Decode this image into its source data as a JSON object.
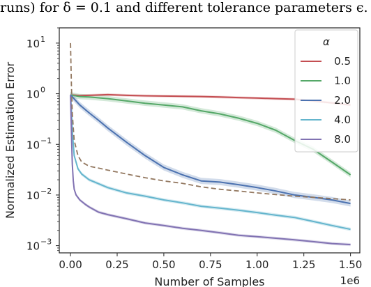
{
  "caption": "runs) for δ = 0.1 and different tolerance parameters ϵ.",
  "chart_data": {
    "type": "line",
    "title": "",
    "xlabel": "Number of Samples",
    "ylabel": "Normalized Estimation Error",
    "x_offset_label": "1e6",
    "xlim": [
      -0.06,
      1.55
    ],
    "ylim": [
      0.00072,
      20
    ],
    "yscale": "log",
    "grid": false,
    "x_ticks": [
      0.0,
      0.25,
      0.5,
      0.75,
      1.0,
      1.25,
      1.5
    ],
    "x_tick_labels": [
      "0.00",
      "0.25",
      "0.50",
      "0.75",
      "1.00",
      "1.25",
      "1.50"
    ],
    "y_ticks": [
      0.001,
      0.01,
      0.1,
      1,
      10
    ],
    "y_tick_labels": [
      "10",
      "10",
      "10",
      "10",
      "10"
    ],
    "y_tick_exponents": [
      "−3",
      "−2",
      "−1",
      "0",
      "1"
    ],
    "legend": {
      "title": "α",
      "position": "top-right"
    },
    "series": [
      {
        "name": "0.5",
        "color": "#c44e52",
        "x": [
          0.0,
          0.05,
          0.1,
          0.2,
          0.3,
          0.4,
          0.5,
          0.6,
          0.7,
          0.8,
          0.9,
          1.0,
          1.1,
          1.2,
          1.3,
          1.4,
          1.5
        ],
        "y": [
          0.95,
          0.92,
          0.93,
          0.96,
          0.93,
          0.91,
          0.9,
          0.89,
          0.88,
          0.86,
          0.84,
          0.82,
          0.8,
          0.78,
          0.72,
          0.66,
          0.6
        ],
        "band": 0.06
      },
      {
        "name": "1.0",
        "color": "#55a868",
        "x": [
          0.0,
          0.05,
          0.1,
          0.2,
          0.3,
          0.4,
          0.5,
          0.6,
          0.7,
          0.8,
          0.9,
          1.0,
          1.1,
          1.2,
          1.3,
          1.4,
          1.5
        ],
        "y": [
          0.95,
          0.88,
          0.86,
          0.8,
          0.72,
          0.65,
          0.6,
          0.55,
          0.46,
          0.4,
          0.33,
          0.26,
          0.19,
          0.12,
          0.08,
          0.045,
          0.025
        ],
        "band": 0.13
      },
      {
        "name": "2.0",
        "color": "#4c72b0",
        "x": [
          0.0,
          0.05,
          0.1,
          0.15,
          0.2,
          0.3,
          0.4,
          0.5,
          0.6,
          0.7,
          0.8,
          0.9,
          1.0,
          1.1,
          1.2,
          1.3,
          1.4,
          1.5
        ],
        "y": [
          0.95,
          0.6,
          0.42,
          0.3,
          0.21,
          0.11,
          0.06,
          0.035,
          0.025,
          0.019,
          0.018,
          0.016,
          0.014,
          0.012,
          0.01,
          0.009,
          0.008,
          0.0068
        ],
        "band": 0.15
      },
      {
        "name": "4.0",
        "color": "#64b5cd",
        "x": [
          0.0,
          0.005,
          0.01,
          0.02,
          0.04,
          0.06,
          0.1,
          0.2,
          0.3,
          0.4,
          0.5,
          0.6,
          0.7,
          0.8,
          0.9,
          1.0,
          1.1,
          1.2,
          1.3,
          1.4,
          1.5
        ],
        "y": [
          0.95,
          0.5,
          0.18,
          0.06,
          0.033,
          0.026,
          0.02,
          0.014,
          0.011,
          0.0095,
          0.008,
          0.007,
          0.006,
          0.0055,
          0.005,
          0.0045,
          0.004,
          0.0036,
          0.003,
          0.0025,
          0.0021
        ],
        "band": 0.08
      },
      {
        "name": "8.0",
        "color": "#8172b2",
        "x": [
          0.0,
          0.003,
          0.006,
          0.01,
          0.015,
          0.02,
          0.03,
          0.05,
          0.08,
          0.1,
          0.15,
          0.2,
          0.3,
          0.4,
          0.5,
          0.6,
          0.7,
          0.8,
          0.9,
          1.0,
          1.1,
          1.2,
          1.3,
          1.4,
          1.5
        ],
        "y": [
          0.95,
          0.35,
          0.12,
          0.04,
          0.019,
          0.013,
          0.01,
          0.008,
          0.0065,
          0.0058,
          0.0046,
          0.0041,
          0.0034,
          0.0028,
          0.0025,
          0.0022,
          0.002,
          0.0018,
          0.0016,
          0.0015,
          0.0014,
          0.0013,
          0.0012,
          0.0011,
          0.00105
        ],
        "band": 0.07
      },
      {
        "name": "",
        "color": "#937860",
        "dashed": true,
        "x": [
          0.0,
          0.005,
          0.01,
          0.02,
          0.04,
          0.06,
          0.1,
          0.15,
          0.2,
          0.3,
          0.4,
          0.5,
          0.6,
          0.7,
          0.8,
          0.9,
          1.0,
          1.1,
          1.2,
          1.3,
          1.4,
          1.5
        ],
        "y": [
          10,
          1.5,
          0.4,
          0.12,
          0.06,
          0.045,
          0.037,
          0.034,
          0.031,
          0.026,
          0.022,
          0.019,
          0.017,
          0.0145,
          0.013,
          0.012,
          0.011,
          0.0102,
          0.0095,
          0.009,
          0.0085,
          0.008
        ],
        "band": 0
      }
    ]
  }
}
